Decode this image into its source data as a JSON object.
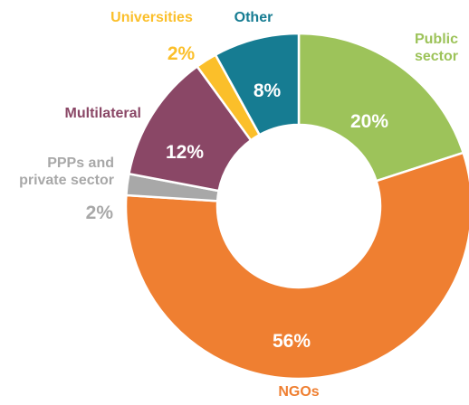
{
  "chart_data": {
    "type": "donut",
    "categories": [
      "Public sector",
      "NGOs",
      "PPPs and private sector",
      "Multilateral",
      "Universities",
      "Other"
    ],
    "values": [
      20,
      56,
      2,
      12,
      2,
      8
    ],
    "value_labels": [
      "20%",
      "56%",
      "2%",
      "12%",
      "2%",
      "8%"
    ],
    "colors": [
      "#9dc35a",
      "#ef7f31",
      "#a8a8a8",
      "#8a4766",
      "#fbbf2a",
      "#167c92"
    ]
  }
}
